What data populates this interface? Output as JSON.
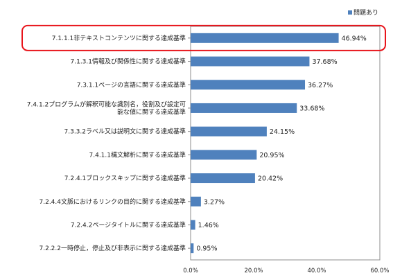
{
  "chart_data": {
    "type": "bar",
    "orientation": "horizontal",
    "title": "",
    "xlabel": "",
    "ylabel": "",
    "xlim": [
      0,
      60
    ],
    "ticks": [
      "0.0%",
      "20.0%",
      "40.0%",
      "60.0%"
    ],
    "grid": false,
    "legend": {
      "position": "top-right",
      "entries": [
        "問題あり"
      ]
    },
    "categories": [
      "7.1.1.1非テキストコンテンツに関する達成基準",
      "7.1.3.1情報及び関係性に関する達成基準",
      "7.3.1.1ページの言語に関する達成基準",
      "7.4.1.2プログラムが解釈可能な識別名，役割及び設定可能な値に関する達成基準",
      "7.3.3.2ラベル又は説明文に関する達成基準",
      "7.4.1.1構文解析に関する達成基準",
      "7.2.4.1ブロックスキップに関する達成基準",
      "7.2.4.4文脈におけるリンクの目的に関する達成基準",
      "7.2.4.2ページタイトルに関する達成基準",
      "7.2.2.2一時停止，停止及び非表示に関する達成基準"
    ],
    "label_lines": [
      [
        "7.1.1.1非テキストコンテンツに関する達成基準"
      ],
      [
        "7.1.3.1情報及び関係性に関する達成基準"
      ],
      [
        "7.3.1.1ページの言語に関する達成基準"
      ],
      [
        "7.4.1.2プログラムが解釈可能な識別名，役割及び設定可",
        "能な値に関する達成基準"
      ],
      [
        "7.3.3.2ラベル又は説明文に関する達成基準"
      ],
      [
        "7.4.1.1構文解析に関する達成基準"
      ],
      [
        "7.2.4.1ブロックスキップに関する達成基準"
      ],
      [
        "7.2.4.4文脈におけるリンクの目的に関する達成基準"
      ],
      [
        "7.2.4.2ページタイトルに関する達成基準"
      ],
      [
        "7.2.2.2一時停止，停止及び非表示に関する達成基準"
      ]
    ],
    "series": [
      {
        "name": "問題あり",
        "values": [
          46.94,
          37.68,
          36.27,
          33.68,
          24.15,
          20.95,
          20.42,
          3.27,
          1.46,
          0.95
        ],
        "value_labels": [
          "46.94%",
          "37.68%",
          "36.27%",
          "33.68%",
          "24.15%",
          "20.95%",
          "20.42%",
          "3.27%",
          "1.46%",
          "0.95%"
        ],
        "color": "#4f81bd"
      }
    ],
    "highlight": {
      "index": 0,
      "color": "#e8141b"
    }
  }
}
